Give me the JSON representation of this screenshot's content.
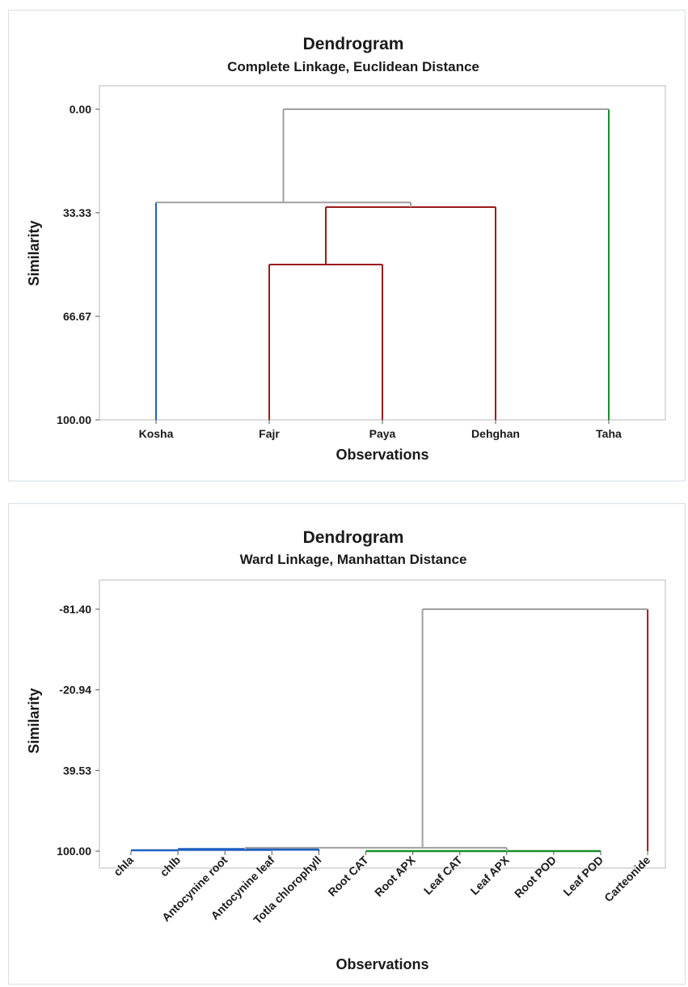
{
  "chart_data": [
    {
      "type": "dendrogram",
      "title": "Dendrogram",
      "subtitle": "Complete Linkage, Euclidean Distance",
      "xlabel": "Observations",
      "ylabel": "Similarity",
      "yticks": [
        "0.00",
        "33.33",
        "66.67",
        "100.00"
      ],
      "ylim": [
        0,
        100
      ],
      "categories": [
        "Kosha",
        "Fajr",
        "Paya",
        "Dehghan",
        "Taha"
      ],
      "merges": [
        {
          "members": [
            "Fajr",
            "Paya"
          ],
          "similarity": 50.0,
          "color": "#9b1b1b"
        },
        {
          "members": [
            "Fajr+Paya",
            "Dehghan"
          ],
          "similarity": 31.5,
          "color": "#9b1b1b"
        },
        {
          "members": [
            "Kosha",
            "Fajr+Paya+Dehghan"
          ],
          "similarity": 30.0,
          "color": "#a0a0a0"
        },
        {
          "members": [
            "Kosha+Fajr+Paya+Dehghan",
            "Taha"
          ],
          "similarity": 0.0,
          "color": "#a0a0a0"
        }
      ],
      "leaf_colors": {
        "Kosha": "#1f5fbf",
        "Fajr": "#9b1b1b",
        "Paya": "#9b1b1b",
        "Dehghan": "#9b1b1b",
        "Taha": "#1a8f2a"
      }
    },
    {
      "type": "dendrogram",
      "title": "Dendrogram",
      "subtitle": "Ward Linkage, Manhattan Distance",
      "xlabel": "Observations",
      "ylabel": "Similarity",
      "yticks": [
        "-81.40",
        "-20.94",
        "39.53",
        "100.00"
      ],
      "ylim": [
        -81.4,
        100
      ],
      "categories": [
        "chla",
        "chlb",
        "Antocynine root",
        "Antocynine leaf",
        "Totla chlorophyll",
        "Root CAT",
        "Root APX",
        "Leaf CAT",
        "Leaf APX",
        "Root POD",
        "Leaf POD",
        "Carteonide"
      ],
      "merges": [
        {
          "leaves": [
            "chla",
            "chlb"
          ],
          "similarity": 99.9,
          "color": "#1f5fbf"
        },
        {
          "leaves": [
            "chlb",
            "Antocynine leaf"
          ],
          "similarity": 99.6,
          "color": "#1f5fbf"
        },
        {
          "leaves": [
            "Antocynine root",
            "Totla chlorophyll"
          ],
          "similarity": 99.6,
          "color": "#1f5fbf"
        },
        {
          "leaves": [
            "Root CAT",
            "Leaf POD"
          ],
          "similarity": 99.95,
          "color": "#1a8f2a"
        },
        {
          "leaves": [
            "Antocynine leaf",
            "Leaf APX"
          ],
          "similarity": 97.5,
          "color": "#a0a0a0"
        },
        {
          "leaves": [
            "Root CAT",
            "Carteonide"
          ],
          "similarity": -81.4,
          "color": "#a0a0a0"
        }
      ],
      "leaf_colors": {
        "Carteonide": "#9b1b1b"
      }
    }
  ]
}
